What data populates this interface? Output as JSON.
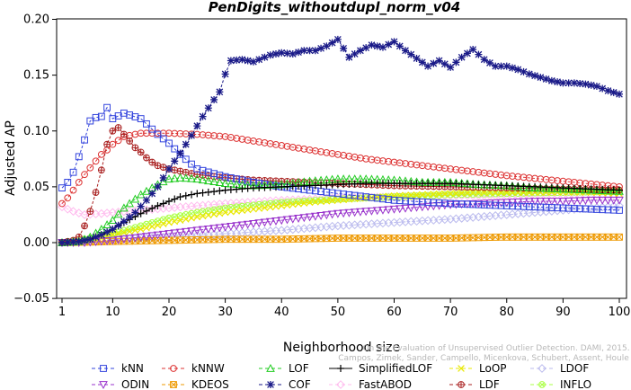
{
  "chart_data": {
    "type": "line",
    "title": "PenDigits_withoutdupl_norm_v04",
    "xlabel": "Neighborhood size",
    "ylabel": "Adjusted AP",
    "xlim": [
      0,
      100
    ],
    "ylim": [
      -0.05,
      0.2
    ],
    "x_ticks": [
      1,
      10,
      20,
      30,
      40,
      50,
      60,
      70,
      80,
      90,
      100
    ],
    "y_ticks": [
      "−0.05",
      "0.00",
      "0.05",
      "0.10",
      "0.15",
      "0.20"
    ],
    "y_tick_values": [
      -0.05,
      0,
      0.05,
      0.1,
      0.15,
      0.2
    ],
    "grid": false,
    "legend_position": "bottom",
    "watermark": [
      "Campos, Zimek, Sander, Campello, Micenkova, Schubert, Assent, Houle",
      "On the Evaluation of Unsupervised Outlier Detection. DAMI, 2015."
    ],
    "series": [
      {
        "name": "kNN",
        "color": "#3344dd",
        "marker": "square",
        "dashed": true,
        "points": [
          [
            1,
            0.049
          ],
          [
            2,
            0.054
          ],
          [
            3,
            0.063
          ],
          [
            4,
            0.077
          ],
          [
            5,
            0.092
          ],
          [
            6,
            0.109
          ],
          [
            7,
            0.112
          ],
          [
            8,
            0.113
          ],
          [
            9,
            0.121
          ],
          [
            10,
            0.111
          ],
          [
            12,
            0.116
          ],
          [
            15,
            0.111
          ],
          [
            18,
            0.097
          ],
          [
            20,
            0.089
          ],
          [
            22,
            0.079
          ],
          [
            25,
            0.066
          ],
          [
            30,
            0.059
          ],
          [
            35,
            0.054
          ],
          [
            40,
            0.05
          ],
          [
            45,
            0.047
          ],
          [
            50,
            0.044
          ],
          [
            55,
            0.041
          ],
          [
            60,
            0.038
          ],
          [
            70,
            0.035
          ],
          [
            80,
            0.033
          ],
          [
            90,
            0.031
          ],
          [
            100,
            0.029
          ]
        ]
      },
      {
        "name": "kNNW",
        "color": "#dd3333",
        "marker": "circle",
        "dashed": true,
        "points": [
          [
            1,
            0.035
          ],
          [
            2,
            0.04
          ],
          [
            3,
            0.047
          ],
          [
            4,
            0.054
          ],
          [
            5,
            0.061
          ],
          [
            6,
            0.067
          ],
          [
            7,
            0.073
          ],
          [
            8,
            0.079
          ],
          [
            9,
            0.083
          ],
          [
            10,
            0.088
          ],
          [
            12,
            0.095
          ],
          [
            15,
            0.098
          ],
          [
            20,
            0.098
          ],
          [
            25,
            0.097
          ],
          [
            30,
            0.095
          ],
          [
            35,
            0.091
          ],
          [
            40,
            0.087
          ],
          [
            45,
            0.083
          ],
          [
            50,
            0.079
          ],
          [
            55,
            0.075
          ],
          [
            60,
            0.072
          ],
          [
            70,
            0.066
          ],
          [
            80,
            0.06
          ],
          [
            90,
            0.055
          ],
          [
            100,
            0.05
          ]
        ]
      },
      {
        "name": "LOF",
        "color": "#22cc22",
        "marker": "triangle-up",
        "dashed": true,
        "points": [
          [
            1,
            0
          ],
          [
            4,
            0.001
          ],
          [
            6,
            0.005
          ],
          [
            8,
            0.012
          ],
          [
            10,
            0.02
          ],
          [
            12,
            0.031
          ],
          [
            15,
            0.043
          ],
          [
            18,
            0.052
          ],
          [
            20,
            0.057
          ],
          [
            22,
            0.058
          ],
          [
            25,
            0.057
          ],
          [
            30,
            0.053
          ],
          [
            35,
            0.051
          ],
          [
            40,
            0.052
          ],
          [
            45,
            0.055
          ],
          [
            50,
            0.057
          ],
          [
            55,
            0.057
          ],
          [
            60,
            0.056
          ],
          [
            65,
            0.054
          ],
          [
            70,
            0.054
          ],
          [
            75,
            0.052
          ],
          [
            80,
            0.051
          ],
          [
            85,
            0.049
          ],
          [
            90,
            0.048
          ],
          [
            95,
            0.047
          ],
          [
            100,
            0.046
          ]
        ]
      },
      {
        "name": "SimplifiedLOF",
        "color": "#000000",
        "marker": "plus",
        "dashed": false,
        "points": [
          [
            1,
            0
          ],
          [
            4,
            0.001
          ],
          [
            6,
            0.003
          ],
          [
            8,
            0.007
          ],
          [
            10,
            0.012
          ],
          [
            12,
            0.018
          ],
          [
            15,
            0.026
          ],
          [
            18,
            0.033
          ],
          [
            20,
            0.037
          ],
          [
            22,
            0.041
          ],
          [
            25,
            0.044
          ],
          [
            30,
            0.047
          ],
          [
            35,
            0.049
          ],
          [
            40,
            0.05
          ],
          [
            45,
            0.051
          ],
          [
            50,
            0.052
          ],
          [
            55,
            0.053
          ],
          [
            60,
            0.053
          ],
          [
            65,
            0.053
          ],
          [
            70,
            0.053
          ],
          [
            75,
            0.052
          ],
          [
            80,
            0.051
          ],
          [
            85,
            0.05
          ],
          [
            90,
            0.049
          ],
          [
            95,
            0.048
          ],
          [
            100,
            0.047
          ]
        ]
      },
      {
        "name": "LoOP",
        "color": "#e8e800",
        "marker": "cross",
        "dashed": true,
        "points": [
          [
            1,
            0
          ],
          [
            4,
            0.001
          ],
          [
            6,
            0.002
          ],
          [
            8,
            0.004
          ],
          [
            10,
            0.007
          ],
          [
            15,
            0.012
          ],
          [
            20,
            0.018
          ],
          [
            25,
            0.023
          ],
          [
            30,
            0.027
          ],
          [
            35,
            0.03
          ],
          [
            40,
            0.033
          ],
          [
            45,
            0.036
          ],
          [
            50,
            0.038
          ],
          [
            55,
            0.04
          ],
          [
            60,
            0.042
          ],
          [
            65,
            0.043
          ],
          [
            70,
            0.044
          ],
          [
            75,
            0.045
          ],
          [
            80,
            0.045
          ],
          [
            85,
            0.045
          ],
          [
            90,
            0.045
          ],
          [
            95,
            0.045
          ],
          [
            100,
            0.044
          ]
        ]
      },
      {
        "name": "LDOF",
        "color": "#bbbbee",
        "marker": "diamond",
        "dashed": true,
        "points": [
          [
            1,
            0
          ],
          [
            5,
            0.001
          ],
          [
            10,
            0.003
          ],
          [
            20,
            0.005
          ],
          [
            30,
            0.008
          ],
          [
            40,
            0.011
          ],
          [
            50,
            0.015
          ],
          [
            60,
            0.018
          ],
          [
            70,
            0.021
          ],
          [
            80,
            0.025
          ],
          [
            90,
            0.029
          ],
          [
            100,
            0.033
          ]
        ]
      },
      {
        "name": "ODIN",
        "color": "#9933cc",
        "marker": "triangle-down",
        "dashed": true,
        "points": [
          [
            1,
            0
          ],
          [
            5,
            0
          ],
          [
            10,
            0.002
          ],
          [
            15,
            0.005
          ],
          [
            20,
            0.008
          ],
          [
            25,
            0.011
          ],
          [
            30,
            0.014
          ],
          [
            35,
            0.017
          ],
          [
            40,
            0.02
          ],
          [
            45,
            0.023
          ],
          [
            50,
            0.026
          ],
          [
            55,
            0.028
          ],
          [
            60,
            0.03
          ],
          [
            65,
            0.032
          ],
          [
            70,
            0.034
          ],
          [
            75,
            0.035
          ],
          [
            80,
            0.036
          ],
          [
            85,
            0.037
          ],
          [
            90,
            0.037
          ],
          [
            95,
            0.038
          ],
          [
            100,
            0.038
          ]
        ]
      },
      {
        "name": "KDEOS",
        "color": "#ee9900",
        "marker": "square-x",
        "dashed": true,
        "points": [
          [
            1,
            0
          ],
          [
            10,
            0.001
          ],
          [
            20,
            0.002
          ],
          [
            30,
            0.003
          ],
          [
            40,
            0.003
          ],
          [
            50,
            0.004
          ],
          [
            60,
            0.004
          ],
          [
            70,
            0.004
          ],
          [
            80,
            0.005
          ],
          [
            90,
            0.005
          ],
          [
            100,
            0.005
          ]
        ]
      },
      {
        "name": "COF",
        "color": "#1a1a88",
        "marker": "star",
        "dashed": true,
        "points": [
          [
            1,
            0
          ],
          [
            4,
            0.001
          ],
          [
            6,
            0.003
          ],
          [
            8,
            0.007
          ],
          [
            10,
            0.012
          ],
          [
            12,
            0.019
          ],
          [
            14,
            0.027
          ],
          [
            16,
            0.038
          ],
          [
            18,
            0.05
          ],
          [
            20,
            0.066
          ],
          [
            22,
            0.08
          ],
          [
            24,
            0.096
          ],
          [
            26,
            0.113
          ],
          [
            28,
            0.128
          ],
          [
            29,
            0.135
          ],
          [
            30,
            0.151
          ],
          [
            31,
            0.163
          ],
          [
            33,
            0.164
          ],
          [
            35,
            0.162
          ],
          [
            37,
            0.166
          ],
          [
            38,
            0.168
          ],
          [
            40,
            0.17
          ],
          [
            42,
            0.169
          ],
          [
            44,
            0.172
          ],
          [
            46,
            0.172
          ],
          [
            48,
            0.176
          ],
          [
            50,
            0.182
          ],
          [
            52,
            0.166
          ],
          [
            54,
            0.172
          ],
          [
            56,
            0.177
          ],
          [
            58,
            0.175
          ],
          [
            60,
            0.18
          ],
          [
            62,
            0.172
          ],
          [
            64,
            0.165
          ],
          [
            66,
            0.158
          ],
          [
            68,
            0.163
          ],
          [
            70,
            0.157
          ],
          [
            72,
            0.166
          ],
          [
            74,
            0.173
          ],
          [
            76,
            0.164
          ],
          [
            78,
            0.158
          ],
          [
            80,
            0.158
          ],
          [
            82,
            0.155
          ],
          [
            84,
            0.151
          ],
          [
            86,
            0.148
          ],
          [
            88,
            0.145
          ],
          [
            90,
            0.143
          ],
          [
            92,
            0.143
          ],
          [
            94,
            0.142
          ],
          [
            96,
            0.14
          ],
          [
            98,
            0.136
          ],
          [
            100,
            0.133
          ]
        ]
      },
      {
        "name": "FastABOD",
        "color": "#ffbbee",
        "marker": "diamond",
        "dashed": true,
        "points": [
          [
            1,
            0.032
          ],
          [
            3,
            0.028
          ],
          [
            5,
            0.025
          ],
          [
            8,
            0.026
          ],
          [
            10,
            0.027
          ],
          [
            15,
            0.029
          ],
          [
            20,
            0.031
          ],
          [
            25,
            0.033
          ],
          [
            30,
            0.035
          ],
          [
            40,
            0.038
          ],
          [
            50,
            0.04
          ],
          [
            60,
            0.041
          ],
          [
            70,
            0.042
          ],
          [
            80,
            0.042
          ],
          [
            90,
            0.043
          ],
          [
            100,
            0.043
          ]
        ]
      },
      {
        "name": "LDF",
        "color": "#aa2222",
        "marker": "circle-plus",
        "dashed": true,
        "points": [
          [
            1,
            0
          ],
          [
            3,
            0.002
          ],
          [
            4,
            0.005
          ],
          [
            5,
            0.015
          ],
          [
            6,
            0.028
          ],
          [
            7,
            0.045
          ],
          [
            8,
            0.065
          ],
          [
            9,
            0.088
          ],
          [
            10,
            0.1
          ],
          [
            11,
            0.103
          ],
          [
            12,
            0.097
          ],
          [
            13,
            0.091
          ],
          [
            14,
            0.085
          ],
          [
            15,
            0.081
          ],
          [
            16,
            0.076
          ],
          [
            17,
            0.072
          ],
          [
            18,
            0.069
          ],
          [
            20,
            0.066
          ],
          [
            22,
            0.064
          ],
          [
            25,
            0.061
          ],
          [
            30,
            0.058
          ],
          [
            35,
            0.056
          ],
          [
            40,
            0.055
          ],
          [
            45,
            0.054
          ],
          [
            50,
            0.053
          ],
          [
            55,
            0.052
          ],
          [
            60,
            0.051
          ],
          [
            70,
            0.05
          ],
          [
            80,
            0.049
          ],
          [
            90,
            0.048
          ],
          [
            100,
            0.047
          ]
        ]
      },
      {
        "name": "INFLO",
        "color": "#aaff44",
        "marker": "circle-x",
        "dashed": true,
        "points": [
          [
            1,
            0
          ],
          [
            5,
            0.003
          ],
          [
            10,
            0.008
          ],
          [
            15,
            0.015
          ],
          [
            20,
            0.022
          ],
          [
            25,
            0.027
          ],
          [
            30,
            0.031
          ],
          [
            40,
            0.036
          ],
          [
            50,
            0.039
          ],
          [
            60,
            0.041
          ],
          [
            70,
            0.043
          ],
          [
            80,
            0.044
          ],
          [
            90,
            0.045
          ],
          [
            100,
            0.046
          ]
        ]
      }
    ]
  }
}
